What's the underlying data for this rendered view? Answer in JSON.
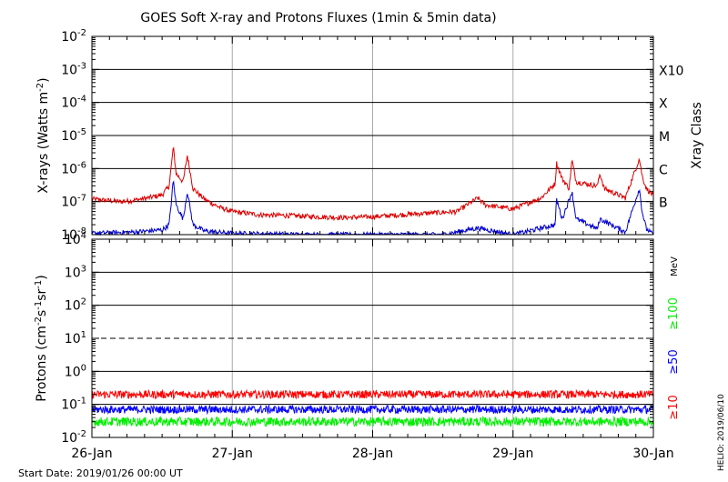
{
  "title": "GOES Soft X-ray and Protons Fluxes   (1min & 5min data)",
  "footer": {
    "start_date": "Start Date: 2019/01/26 00:00 UT",
    "helio": "HELIO: 2019/06/10"
  },
  "colors": {
    "xray_long": "#dd0000",
    "xray_short": "#0000cc",
    "proton_10": "#ff0000",
    "proton_50": "#0000ff",
    "proton_100": "#00ee00",
    "grid_major": "#000000",
    "grid_day": "#aaaaaa"
  },
  "chart_data": [
    {
      "type": "line",
      "panel": "xray",
      "ylabel": "X-rays (Watts m⁻²)",
      "yscale": "log",
      "ylim": [
        1e-08,
        0.01
      ],
      "y_ticks": [
        {
          "mant": "10",
          "exp": "-8"
        },
        {
          "mant": "10",
          "exp": "-7"
        },
        {
          "mant": "10",
          "exp": "-6"
        },
        {
          "mant": "10",
          "exp": "-5"
        },
        {
          "mant": "10",
          "exp": "-4"
        },
        {
          "mant": "10",
          "exp": "-3"
        },
        {
          "mant": "10",
          "exp": "-2"
        }
      ],
      "right_label": "Xray Class",
      "class_labels": [
        {
          "label": "B",
          "value": 1e-07
        },
        {
          "label": "C",
          "value": 1e-06
        },
        {
          "label": "M",
          "value": 1e-05
        },
        {
          "label": "X",
          "value": 0.0001
        },
        {
          "label": "X10",
          "value": 0.001
        }
      ],
      "xlim": [
        "2019-01-26T00:00",
        "2019-01-30T00:00"
      ],
      "x_ticks": [
        "26-Jan",
        "27-Jan",
        "28-Jan",
        "29-Jan",
        "30-Jan"
      ],
      "series": [
        {
          "key": "long",
          "color_key": "xray_long",
          "x_days": [
            0.0,
            0.1,
            0.2,
            0.3,
            0.4,
            0.5,
            0.55,
            0.58,
            0.6,
            0.65,
            0.68,
            0.72,
            0.8,
            0.9,
            1.0,
            1.2,
            1.4,
            1.6,
            1.8,
            2.0,
            2.2,
            2.4,
            2.6,
            2.75,
            2.8,
            3.0,
            3.2,
            3.3,
            3.31,
            3.35,
            3.4,
            3.42,
            3.45,
            3.6,
            3.62,
            3.65,
            3.8,
            3.9,
            3.92,
            3.95,
            4.0
          ],
          "values": [
            1.2e-07,
            1.1e-07,
            1e-07,
            1.1e-07,
            1.3e-07,
            1.6e-07,
            3e-07,
            4.5e-06,
            7e-07,
            4e-07,
            2.5e-06,
            2.5e-07,
            1.2e-07,
            7e-08,
            5e-08,
            4e-08,
            3.8e-08,
            3.5e-08,
            3.3e-08,
            3.5e-08,
            4e-08,
            4.5e-08,
            5e-08,
            1.3e-07,
            8e-08,
            6e-08,
            1.3e-07,
            3.5e-07,
            1.5e-06,
            5e-07,
            2.5e-07,
            1.8e-06,
            4e-07,
            3e-07,
            7e-07,
            2.5e-07,
            1.3e-07,
            2e-06,
            6e-07,
            2.5e-07,
            1.5e-07
          ]
        },
        {
          "key": "short",
          "color_key": "xray_short",
          "x_days": [
            0.0,
            0.3,
            0.5,
            0.55,
            0.58,
            0.6,
            0.65,
            0.68,
            0.72,
            0.8,
            1.0,
            1.5,
            2.0,
            2.5,
            2.75,
            3.0,
            3.3,
            3.31,
            3.35,
            3.42,
            3.45,
            3.6,
            3.62,
            3.8,
            3.9,
            3.92,
            3.95,
            4.0
          ],
          "values": [
            1.1e-08,
            1.2e-08,
            1.4e-08,
            2e-08,
            4.5e-07,
            8e-08,
            3e-08,
            2e-07,
            2e-08,
            1.3e-08,
            1.1e-08,
            1e-08,
            1e-08,
            1e-08,
            1.6e-08,
            1e-08,
            2e-08,
            1.2e-07,
            3e-08,
            2e-07,
            3e-08,
            1.5e-08,
            3e-08,
            1.2e-08,
            2.5e-07,
            5e-08,
            1.5e-08,
            1e-08
          ]
        }
      ]
    },
    {
      "type": "line",
      "panel": "protons",
      "ylabel": "Protons (cm⁻²s⁻¹sr⁻¹)",
      "yscale": "log",
      "ylim": [
        0.01,
        10000
      ],
      "y_ticks": [
        {
          "mant": "10",
          "exp": "-2"
        },
        {
          "mant": "10",
          "exp": "-1"
        },
        {
          "mant": "10",
          "exp": "0"
        },
        {
          "mant": "10",
          "exp": "1"
        },
        {
          "mant": "10",
          "exp": "2"
        },
        {
          "mant": "10",
          "exp": "3"
        },
        {
          "mant": "10",
          "exp": "4"
        }
      ],
      "threshold": 10,
      "unit_label": "MeV",
      "xlim": [
        "2019-01-26T00:00",
        "2019-01-30T00:00"
      ],
      "x_ticks": [
        "26-Jan",
        "27-Jan",
        "28-Jan",
        "29-Jan",
        "30-Jan"
      ],
      "series": [
        {
          "name": "≥10",
          "color_key": "proton_10",
          "base": 0.2,
          "spread": 0.12
        },
        {
          "name": "≥50",
          "color_key": "proton_50",
          "base": 0.07,
          "spread": 0.12
        },
        {
          "name": "≥100",
          "color_key": "proton_100",
          "base": 0.03,
          "spread": 0.14
        }
      ]
    }
  ]
}
